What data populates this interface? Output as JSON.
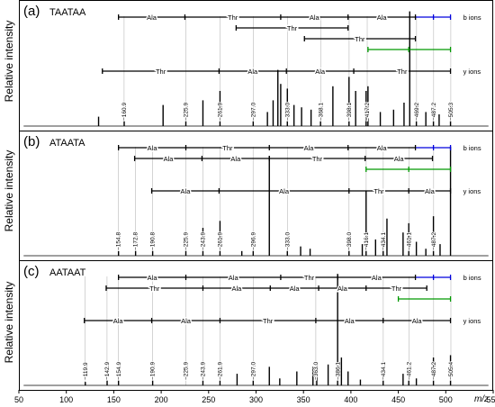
{
  "chart_data": {
    "type": "bar",
    "xlabel": "m/z",
    "ylabel": "Relative intensity",
    "xlim": [
      50,
      550
    ],
    "x_ticks": [
      50,
      100,
      150,
      200,
      250,
      300,
      350,
      400,
      450,
      500,
      550
    ],
    "legend": [
      "b ions",
      "y ions"
    ],
    "panels": [
      {
        "label": "(a)",
        "sequence": "TAATAA",
        "b_ladder": {
          "marks": [
            155,
            225,
            326,
            397,
            468,
            487,
            505
          ],
          "residues": [
            "Ala",
            "Thr",
            "Ala",
            "Ala"
          ],
          "blue_from": 468
        },
        "extra_ladders": [
          {
            "marks": [
              279,
              397
            ],
            "residues": [
              "Thr"
            ],
            "color": "#000000"
          },
          {
            "marks": [
              351,
              468
            ],
            "residues": [
              "Thr"
            ],
            "color": "#000000"
          },
          {
            "marks": [
              418,
              461,
              505
            ],
            "residues": [],
            "color": "#009900"
          }
        ],
        "y_ladder": {
          "marks": [
            138,
            261,
            332,
            403,
            505
          ],
          "residues": [
            "Thr",
            "Ala",
            "Ala",
            "Thr"
          ]
        },
        "peak_labels": [
          {
            "mz": 160.9,
            "text": "160.9"
          },
          {
            "mz": 225.9,
            "text": "225.9"
          },
          {
            "mz": 261.9,
            "text": "261.9"
          },
          {
            "mz": 297.0,
            "text": "297.0"
          },
          {
            "mz": 333.0,
            "text": "333.0"
          },
          {
            "mz": 368.1,
            "text": "368.1"
          },
          {
            "mz": 398.1,
            "text": "398.1"
          },
          {
            "mz": 417.2,
            "text": "417.2"
          },
          {
            "mz": 469.2,
            "text": "469.2"
          },
          {
            "mz": 487.2,
            "text": "487.2"
          },
          {
            "mz": 505.3,
            "text": "505.3"
          }
        ],
        "peaks": [
          [
            134,
            0.08
          ],
          [
            161,
            0.05
          ],
          [
            202,
            0.18
          ],
          [
            226,
            0.06
          ],
          [
            244,
            0.22
          ],
          [
            262,
            0.3
          ],
          [
            297,
            0.14
          ],
          [
            312,
            0.12
          ],
          [
            318,
            0.22
          ],
          [
            323,
            0.48
          ],
          [
            326,
            0.36
          ],
          [
            333,
            0.32
          ],
          [
            340,
            0.18
          ],
          [
            348,
            0.16
          ],
          [
            358,
            0.14
          ],
          [
            368,
            0.08
          ],
          [
            381,
            0.34
          ],
          [
            398,
            0.42
          ],
          [
            405,
            0.3
          ],
          [
            416,
            0.3
          ],
          [
            418,
            0.34
          ],
          [
            431,
            0.12
          ],
          [
            445,
            0.14
          ],
          [
            456,
            0.2
          ],
          [
            462,
            0.98
          ],
          [
            469,
            0.2
          ],
          [
            479,
            0.12
          ],
          [
            487,
            0.14
          ],
          [
            493,
            0.1
          ],
          [
            505,
            0.18
          ]
        ]
      },
      {
        "label": "(b)",
        "sequence": "ATAATA",
        "b_ladder": {
          "marks": [
            155,
            226,
            314,
            397,
            468,
            487,
            505
          ],
          "residues": [
            "Ala",
            "Thr",
            "Ala",
            "Ala"
          ],
          "blue_from": 468
        },
        "extra_ladders": [
          {
            "marks": [
              172,
              243,
              314,
              415,
              486
            ],
            "residues": [
              "Ala",
              "Ala",
              "Thr",
              "Ala"
            ],
            "color": "#000000"
          },
          {
            "marks": [
              416,
              461,
              505
            ],
            "residues": [],
            "color": "#009900"
          }
        ],
        "y_ladder": {
          "marks": [
            190,
            261,
            398,
            461,
            505
          ],
          "residues": [
            "Ala",
            "Ala",
            "Thr",
            "Ala"
          ]
        },
        "peak_labels": [
          {
            "mz": 154.8,
            "text": "154.8"
          },
          {
            "mz": 172.8,
            "text": "172.8"
          },
          {
            "mz": 190.8,
            "text": "190.8"
          },
          {
            "mz": 225.9,
            "text": "225.9"
          },
          {
            "mz": 243.9,
            "text": "243.9"
          },
          {
            "mz": 261.9,
            "text": "261.9"
          },
          {
            "mz": 296.9,
            "text": "296.9"
          },
          {
            "mz": 333.0,
            "text": "333.0"
          },
          {
            "mz": 398.0,
            "text": "398.0"
          },
          {
            "mz": 416.1,
            "text": "416.1"
          },
          {
            "mz": 434.1,
            "text": "434.1"
          },
          {
            "mz": 461.1,
            "text": "461.1"
          },
          {
            "mz": 487.2,
            "text": "487.2"
          }
        ],
        "peaks": [
          [
            155,
            0.04
          ],
          [
            173,
            0.05
          ],
          [
            191,
            0.14
          ],
          [
            226,
            0.05
          ],
          [
            244,
            0.24
          ],
          [
            262,
            0.3
          ],
          [
            285,
            0.04
          ],
          [
            297,
            0.08
          ],
          [
            314,
            0.86
          ],
          [
            333,
            0.1
          ],
          [
            347,
            0.08
          ],
          [
            357,
            0.06
          ],
          [
            398,
            0.1
          ],
          [
            412,
            0.1
          ],
          [
            416,
            0.56
          ],
          [
            426,
            0.14
          ],
          [
            434,
            0.1
          ],
          [
            438,
            0.32
          ],
          [
            455,
            0.2
          ],
          [
            461,
            0.28
          ],
          [
            469,
            0.12
          ],
          [
            479,
            0.06
          ],
          [
            487,
            0.34
          ],
          [
            494,
            0.1
          ],
          [
            505,
            0.94
          ]
        ]
      },
      {
        "label": "(c)",
        "sequence": "AATAAT",
        "b_ladder": {
          "marks": [
            155,
            226,
            326,
            386,
            468,
            487,
            505
          ],
          "residues": [
            "Ala",
            "Ala",
            "Thr",
            "Ala"
          ],
          "blue_from": 468
        },
        "extra_ladders": [
          {
            "marks": [
              142,
              244,
              315,
              366,
              416,
              480
            ],
            "residues": [
              "Thr",
              "Ala",
              "Ala",
              "Ala",
              "Thr"
            ],
            "color": "#000000"
          },
          {
            "marks": [
              450,
              505
            ],
            "residues": [],
            "color": "#009900"
          }
        ],
        "y_ladder": {
          "marks": [
            119,
            190,
            262,
            363,
            434,
            505
          ],
          "residues": [
            "Ala",
            "Ala",
            "Thr",
            "Ala",
            "Ala"
          ]
        },
        "peak_labels": [
          {
            "mz": 119.9,
            "text": "119.9"
          },
          {
            "mz": 142.9,
            "text": "142.9"
          },
          {
            "mz": 154.9,
            "text": "154.9"
          },
          {
            "mz": 190.9,
            "text": "190.9"
          },
          {
            "mz": 225.9,
            "text": "225.9"
          },
          {
            "mz": 243.9,
            "text": "243.9"
          },
          {
            "mz": 261.9,
            "text": "261.9"
          },
          {
            "mz": 297.0,
            "text": "297.0"
          },
          {
            "mz": 363.0,
            "text": "363.0"
          },
          {
            "mz": 386.1,
            "text": "386.1"
          },
          {
            "mz": 434.1,
            "text": "434.1"
          },
          {
            "mz": 461.2,
            "text": "461.2"
          },
          {
            "mz": 487.2,
            "text": "487.2"
          },
          {
            "mz": 505.4,
            "text": "505.4"
          }
        ],
        "peaks": [
          [
            120,
            0.03
          ],
          [
            143,
            0.05
          ],
          [
            155,
            0.05
          ],
          [
            191,
            0.08
          ],
          [
            244,
            0.12
          ],
          [
            262,
            0.08
          ],
          [
            280,
            0.1
          ],
          [
            297,
            0.06
          ],
          [
            314,
            0.16
          ],
          [
            325,
            0.06
          ],
          [
            343,
            0.12
          ],
          [
            360,
            0.16
          ],
          [
            364,
            0.1
          ],
          [
            376,
            0.18
          ],
          [
            386,
            0.96
          ],
          [
            390,
            0.24
          ],
          [
            397,
            0.12
          ],
          [
            410,
            0.05
          ],
          [
            434,
            0.05
          ],
          [
            455,
            0.1
          ],
          [
            461,
            0.07
          ],
          [
            469,
            0.06
          ],
          [
            487,
            0.24
          ],
          [
            505,
            0.26
          ]
        ]
      }
    ]
  }
}
